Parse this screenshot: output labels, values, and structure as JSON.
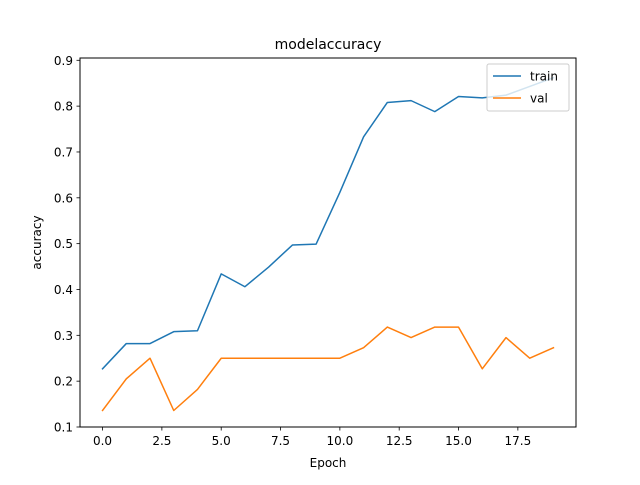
{
  "chart_data": {
    "type": "line",
    "title": "modelaccuracy",
    "xlabel": "Epoch",
    "ylabel": "accuracy",
    "xlim": [
      -0.95,
      19.95
    ],
    "ylim": [
      0.1,
      0.905
    ],
    "grid": false,
    "legend_position": "top-right",
    "xticks": [
      {
        "value": 0,
        "label": "0.0"
      },
      {
        "value": 2.5,
        "label": "2.5"
      },
      {
        "value": 5,
        "label": "5.0"
      },
      {
        "value": 7.5,
        "label": "7.5"
      },
      {
        "value": 10,
        "label": "10.0"
      },
      {
        "value": 12.5,
        "label": "12.5"
      },
      {
        "value": 15,
        "label": "15.0"
      },
      {
        "value": 17.5,
        "label": "17.5"
      }
    ],
    "yticks": [
      {
        "value": 0.1,
        "label": "0.1"
      },
      {
        "value": 0.2,
        "label": "0.2"
      },
      {
        "value": 0.3,
        "label": "0.3"
      },
      {
        "value": 0.4,
        "label": "0.4"
      },
      {
        "value": 0.5,
        "label": "0.5"
      },
      {
        "value": 0.6,
        "label": "0.6"
      },
      {
        "value": 0.7,
        "label": "0.7"
      },
      {
        "value": 0.8,
        "label": "0.8"
      },
      {
        "value": 0.9,
        "label": "0.9"
      }
    ],
    "x": [
      0,
      1,
      2,
      3,
      4,
      5,
      6,
      7,
      8,
      9,
      10,
      11,
      12,
      13,
      14,
      15,
      16,
      17,
      18,
      19
    ],
    "series": [
      {
        "name": "train",
        "color": "#1f77b4",
        "values": [
          0.227,
          0.282,
          0.282,
          0.308,
          0.31,
          0.434,
          0.406,
          0.449,
          0.497,
          0.499,
          0.612,
          0.733,
          0.808,
          0.812,
          0.788,
          0.821,
          0.818,
          0.824,
          0.843,
          0.862
        ]
      },
      {
        "name": "val",
        "color": "#ff7f0e",
        "values": [
          0.136,
          0.205,
          0.25,
          0.136,
          0.182,
          0.25,
          0.25,
          0.25,
          0.25,
          0.25,
          0.25,
          0.273,
          0.318,
          0.295,
          0.318,
          0.318,
          0.227,
          0.295,
          0.25,
          0.273
        ]
      }
    ]
  }
}
